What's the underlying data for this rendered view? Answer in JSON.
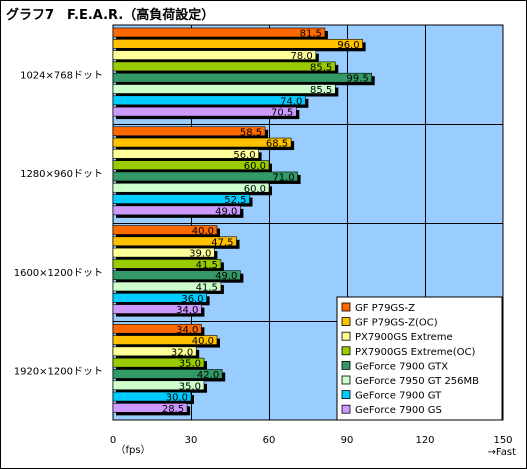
{
  "chart_data": {
    "type": "bar",
    "orientation": "horizontal",
    "title": "グラフ7　F.E.A.R.（高負荷設定）",
    "categories": [
      "1024×768ドット",
      "1280×960ドット",
      "1600×1200ドット",
      "1920×1200ドット"
    ],
    "series": [
      {
        "name": "GF P79GS-Z",
        "color": "#ff6a00",
        "values": [
          81.5,
          58.5,
          40.0,
          34.0
        ]
      },
      {
        "name": "GF P79GS-Z(OC)",
        "color": "#ffc000",
        "values": [
          96.0,
          68.5,
          47.5,
          40.0
        ]
      },
      {
        "name": "PX7900GS Extreme",
        "color": "#ffff99",
        "values": [
          78.0,
          56.0,
          39.0,
          32.0
        ]
      },
      {
        "name": "PX7900GS Extreme(OC)",
        "color": "#99cc00",
        "values": [
          85.5,
          60.0,
          41.5,
          35.0
        ]
      },
      {
        "name": "GeForce 7900 GTX",
        "color": "#339966",
        "values": [
          99.5,
          71.0,
          49.0,
          42.0
        ]
      },
      {
        "name": "GeForce 7950 GT 256MB",
        "color": "#ccffcc",
        "values": [
          85.5,
          60.0,
          41.5,
          35.0
        ]
      },
      {
        "name": "GeForce 7900 GT",
        "color": "#00ccff",
        "values": [
          74.0,
          52.5,
          36.0,
          30.0
        ]
      },
      {
        "name": "GeForce 7900 GS",
        "color": "#cc99ff",
        "values": [
          70.5,
          49.0,
          34.0,
          28.5
        ]
      }
    ],
    "value_labels": [
      [
        "81.5",
        "58.5",
        "40.0",
        "34.0"
      ],
      [
        "96.0",
        "68.5",
        "47.5",
        "40.0"
      ],
      [
        "78.0",
        "56.0",
        "39.0",
        "32.0"
      ],
      [
        "85.5",
        "60.0",
        "41.5",
        "35.0"
      ],
      [
        "99.5",
        "71.0",
        "49.0",
        "42.0"
      ],
      [
        "85.5",
        "60.0",
        "41.5",
        "35.0"
      ],
      [
        "74.0",
        "52.5",
        "36.0",
        "30.0"
      ],
      [
        "70.5",
        "49.0",
        "34.0",
        "28.5"
      ]
    ],
    "xlim": [
      0,
      150
    ],
    "xticks": [
      "0",
      "30",
      "60",
      "90",
      "120",
      "150"
    ],
    "xlabel": "（fps）",
    "x_direction_note": "→Fast",
    "plot_background": "#99ccff",
    "grid": true,
    "legend_position": "bottom-right"
  }
}
